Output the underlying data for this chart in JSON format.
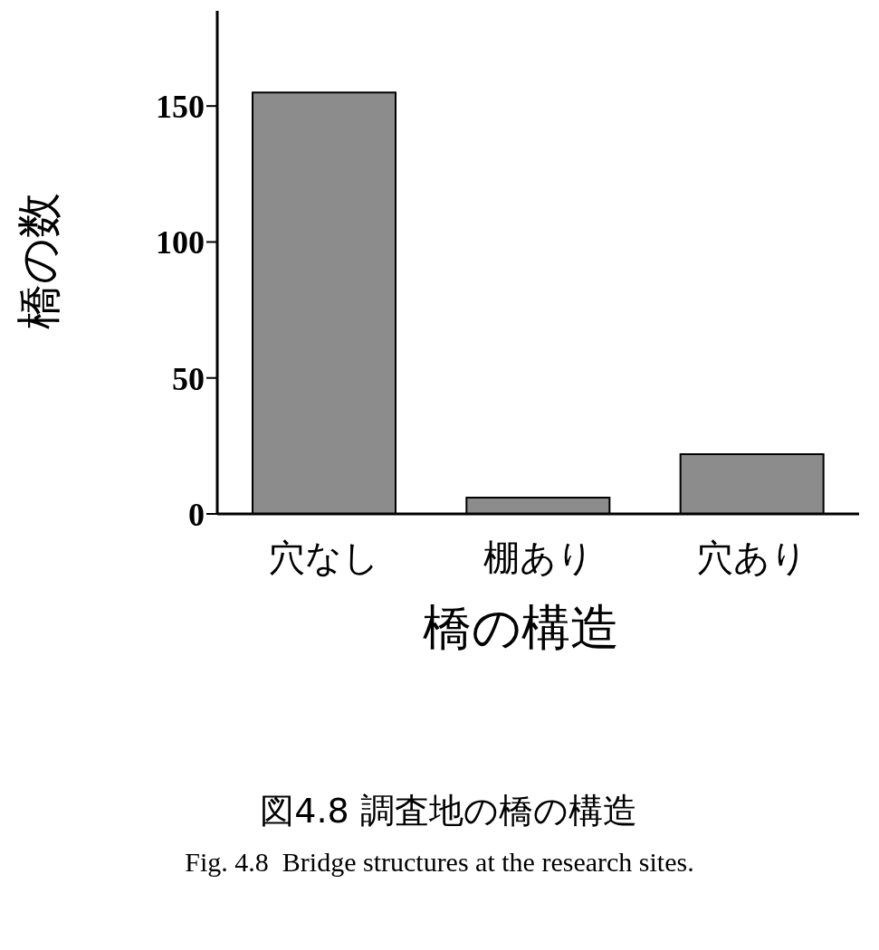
{
  "chart_data": {
    "type": "bar",
    "title": "図4.8 調査地の橋の構造",
    "annotations": [
      "Fig. 4.8  Bridge structures at the research sites."
    ],
    "xlabel": "橋の構造",
    "ylabel": "橋の数",
    "categories": [
      "穴なし",
      "棚あり",
      "穴あり"
    ],
    "values": [
      155,
      6,
      22
    ],
    "color": "#8c8c8c",
    "ylim": [
      0,
      185
    ],
    "yticks": [
      0,
      50,
      100,
      150
    ],
    "grid": false,
    "legend": false
  }
}
